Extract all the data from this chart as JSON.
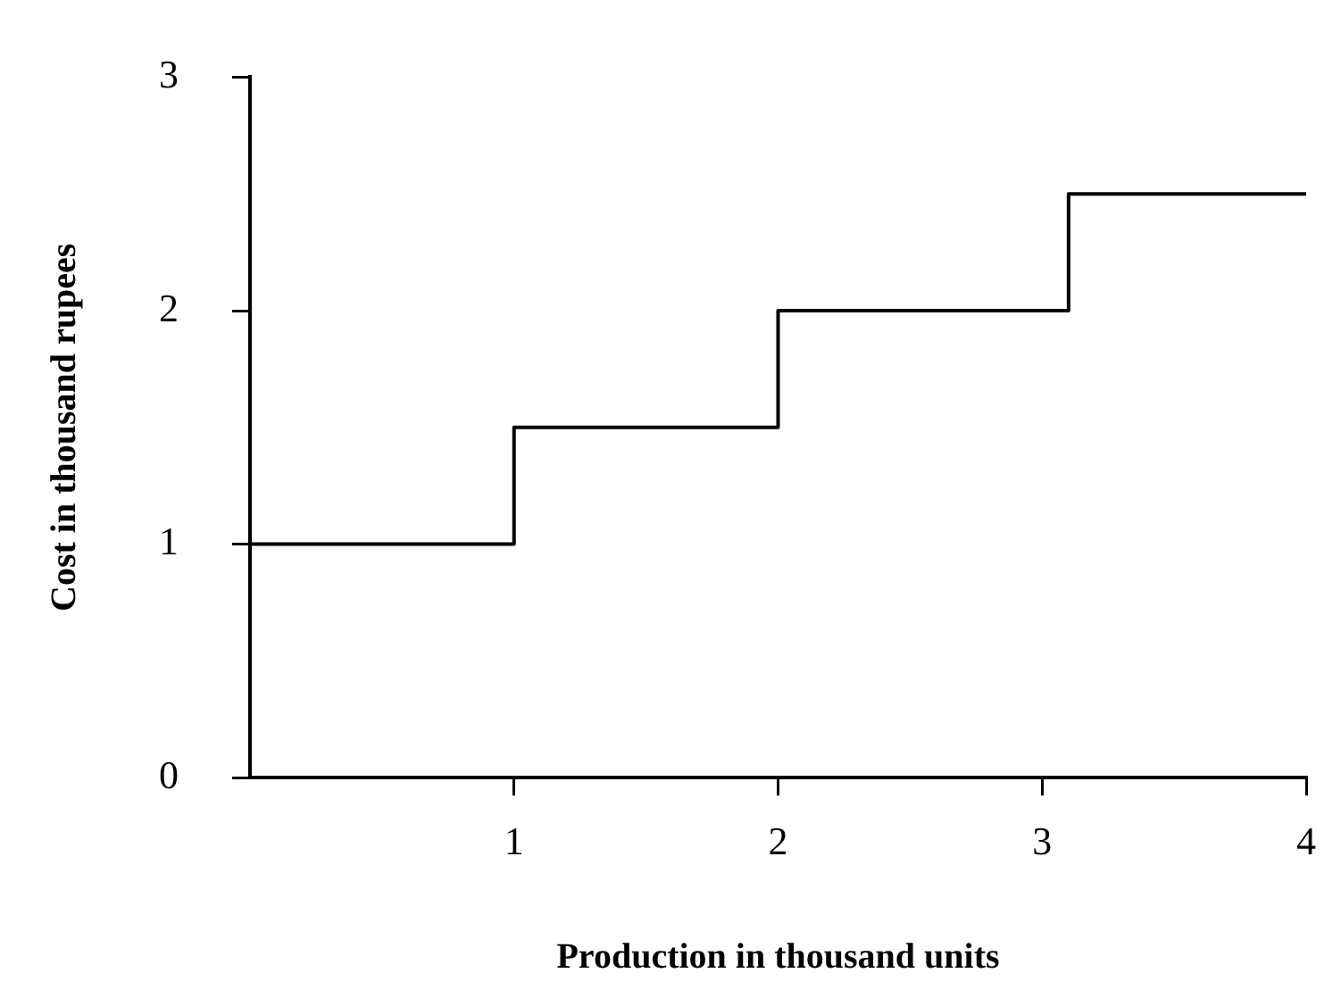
{
  "chart_data": {
    "type": "step",
    "xlabel": "Production in thousand units",
    "ylabel": "Cost in thousand rupees",
    "x": [
      0,
      1,
      2,
      3.1,
      4
    ],
    "series": [
      {
        "color": "#000000",
        "values": [
          1,
          1.5,
          2,
          2.5,
          2.5
        ]
      }
    ],
    "xlim": [
      0,
      4
    ],
    "ylim": [
      0,
      3
    ],
    "xticks": [
      1,
      2,
      3,
      4
    ],
    "yticks": [
      0,
      1,
      2,
      3
    ],
    "grid": false,
    "legend": false,
    "marker": "none",
    "line_style": "solid"
  }
}
